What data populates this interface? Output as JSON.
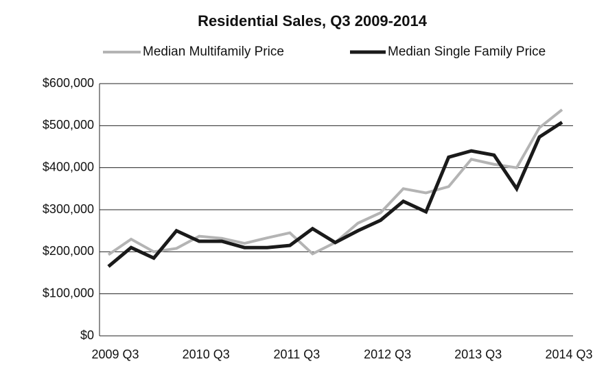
{
  "chart_data": {
    "type": "line",
    "title": "Residential Sales, Q3 2009-2014",
    "categories": [
      "2009 Q3",
      null,
      null,
      null,
      "2010 Q3",
      null,
      null,
      null,
      "2011 Q3",
      null,
      null,
      null,
      "2012 Q3",
      null,
      null,
      null,
      "2013 Q3",
      null,
      null,
      null,
      "2014 Q3"
    ],
    "series": [
      {
        "name": "Median Multifamily Price",
        "color": "#b4b4b4",
        "values": [
          193000,
          230000,
          200000,
          208000,
          237000,
          232000,
          220000,
          233000,
          245000,
          195000,
          222000,
          268000,
          293000,
          350000,
          340000,
          355000,
          420000,
          408000,
          400000,
          495000,
          538000
        ]
      },
      {
        "name": "Median Single Family Price",
        "color": "#1a1a1a",
        "values": [
          165000,
          210000,
          185000,
          250000,
          225000,
          225000,
          210000,
          210000,
          215000,
          255000,
          222000,
          250000,
          275000,
          320000,
          295000,
          425000,
          440000,
          430000,
          350000,
          473000,
          508000
        ]
      }
    ],
    "ylim": [
      0,
      600000
    ],
    "yticks": [
      {
        "value": 0,
        "label": "$0"
      },
      {
        "value": 100000,
        "label": "$100,000"
      },
      {
        "value": 200000,
        "label": "$200,000"
      },
      {
        "value": 300000,
        "label": "$300,000"
      },
      {
        "value": 400000,
        "label": "$400,000"
      },
      {
        "value": 500000,
        "label": "$500,000"
      },
      {
        "value": 600000,
        "label": "$600,000"
      }
    ],
    "grid": true,
    "legend": "top"
  }
}
